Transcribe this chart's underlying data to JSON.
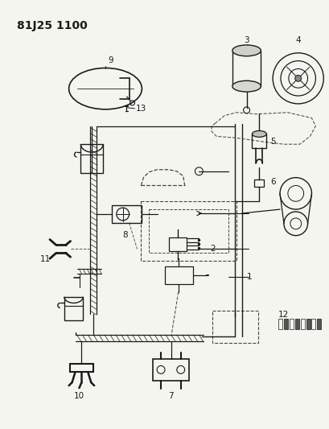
{
  "title": "81J25 1100",
  "bg_color": "#f5f5f0",
  "line_color": "#1a1a1a",
  "title_fontsize": 10,
  "label_fontsize": 7.5
}
